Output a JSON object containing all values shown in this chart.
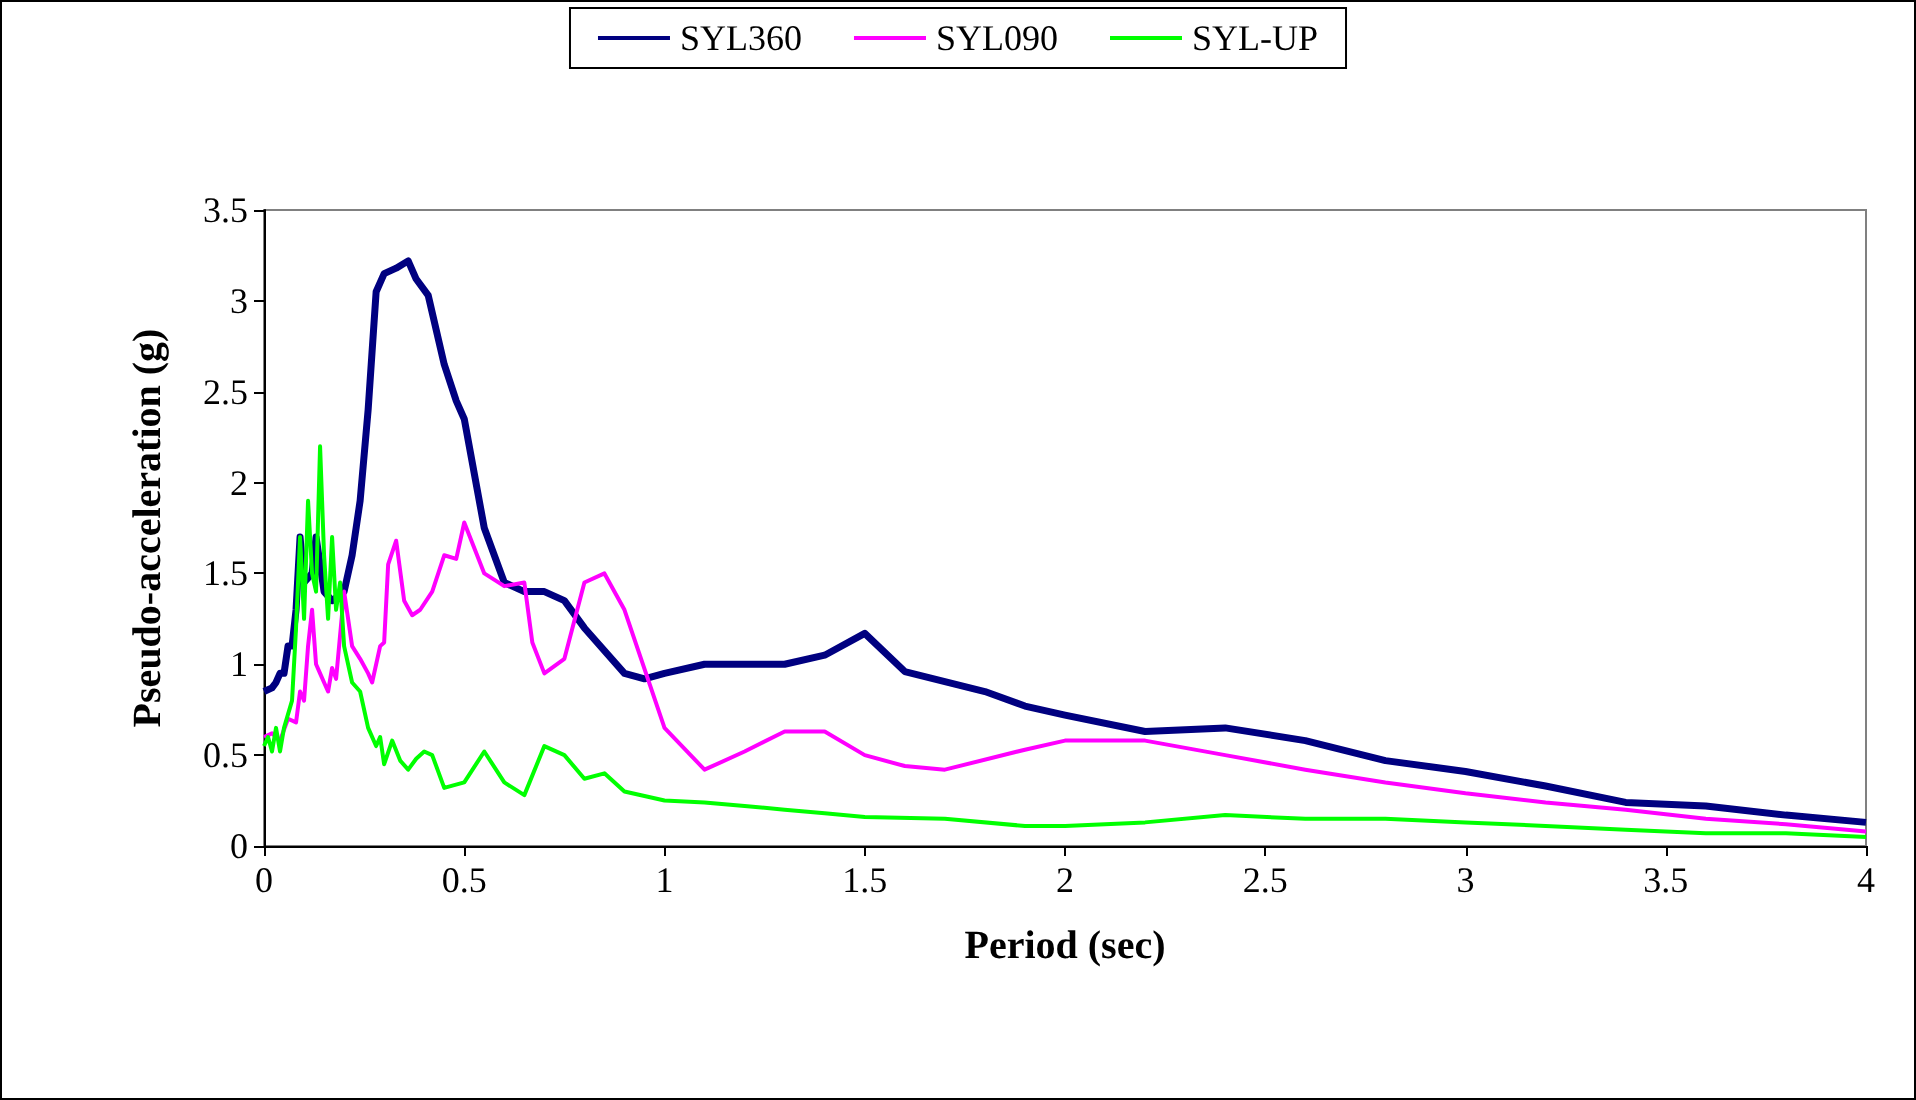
{
  "chart_data": {
    "type": "line",
    "xlabel": "Period (sec)",
    "ylabel": "Pseudo-acceleration (g)",
    "xlim": [
      0,
      4
    ],
    "xticks": [
      0,
      0.5,
      1,
      1.5,
      2,
      2.5,
      3,
      3.5,
      4
    ],
    "ylim": [
      0,
      3.5
    ],
    "yticks": [
      0,
      0.5,
      1,
      1.5,
      2,
      2.5,
      3,
      3.5
    ],
    "grid": false,
    "legend": "top",
    "marker": "none",
    "line_style": "solid",
    "series": [
      {
        "name": "SYL360",
        "color": "#000080",
        "x": [
          0,
          0.02,
          0.03,
          0.04,
          0.05,
          0.06,
          0.07,
          0.08,
          0.09,
          0.1,
          0.12,
          0.13,
          0.15,
          0.17,
          0.2,
          0.22,
          0.24,
          0.26,
          0.28,
          0.3,
          0.33,
          0.36,
          0.38,
          0.41,
          0.45,
          0.48,
          0.5,
          0.55,
          0.6,
          0.65,
          0.7,
          0.75,
          0.8,
          0.9,
          0.95,
          1.0,
          1.1,
          1.2,
          1.3,
          1.4,
          1.5,
          1.6,
          1.8,
          1.9,
          2.0,
          2.2,
          2.4,
          2.6,
          2.8,
          3.0,
          3.2,
          3.4,
          3.6,
          3.8,
          4.0
        ],
        "values": [
          0.85,
          0.87,
          0.9,
          0.95,
          0.95,
          1.1,
          1.1,
          1.3,
          1.7,
          1.45,
          1.5,
          1.7,
          1.4,
          1.35,
          1.4,
          1.6,
          1.9,
          2.4,
          3.05,
          3.15,
          3.18,
          3.22,
          3.12,
          3.03,
          2.65,
          2.45,
          2.35,
          1.75,
          1.45,
          1.4,
          1.4,
          1.35,
          1.2,
          0.95,
          0.92,
          0.95,
          1.0,
          1.0,
          1.0,
          1.05,
          1.17,
          0.96,
          0.85,
          0.77,
          0.72,
          0.63,
          0.65,
          0.58,
          0.47,
          0.41,
          0.33,
          0.24,
          0.22,
          0.17,
          0.13
        ]
      },
      {
        "name": "SYL090",
        "color": "#ff00ff",
        "x": [
          0,
          0.02,
          0.04,
          0.06,
          0.08,
          0.09,
          0.1,
          0.11,
          0.12,
          0.13,
          0.14,
          0.15,
          0.16,
          0.17,
          0.18,
          0.2,
          0.22,
          0.24,
          0.26,
          0.27,
          0.29,
          0.3,
          0.31,
          0.33,
          0.35,
          0.37,
          0.39,
          0.42,
          0.45,
          0.48,
          0.5,
          0.55,
          0.6,
          0.65,
          0.67,
          0.7,
          0.75,
          0.8,
          0.85,
          0.9,
          1.0,
          1.1,
          1.2,
          1.3,
          1.4,
          1.5,
          1.6,
          1.7,
          1.9,
          2.0,
          2.2,
          2.4,
          2.6,
          2.8,
          3.0,
          3.2,
          3.4,
          3.6,
          3.8,
          4.0
        ],
        "values": [
          0.6,
          0.62,
          0.58,
          0.7,
          0.68,
          0.85,
          0.8,
          1.1,
          1.3,
          1.0,
          0.95,
          0.9,
          0.85,
          0.98,
          0.92,
          1.4,
          1.1,
          1.03,
          0.95,
          0.9,
          1.1,
          1.12,
          1.55,
          1.68,
          1.35,
          1.27,
          1.3,
          1.4,
          1.6,
          1.58,
          1.78,
          1.5,
          1.43,
          1.45,
          1.12,
          0.95,
          1.03,
          1.45,
          1.5,
          1.3,
          0.65,
          0.42,
          0.52,
          0.63,
          0.63,
          0.5,
          0.44,
          0.42,
          0.53,
          0.58,
          0.58,
          0.5,
          0.42,
          0.35,
          0.29,
          0.24,
          0.2,
          0.15,
          0.12,
          0.08
        ]
      },
      {
        "name": "SYL-UP",
        "color": "#00ff00",
        "x": [
          0,
          0.01,
          0.02,
          0.03,
          0.04,
          0.05,
          0.07,
          0.08,
          0.09,
          0.1,
          0.11,
          0.12,
          0.13,
          0.14,
          0.15,
          0.16,
          0.17,
          0.18,
          0.19,
          0.2,
          0.22,
          0.24,
          0.26,
          0.28,
          0.29,
          0.3,
          0.32,
          0.34,
          0.36,
          0.38,
          0.4,
          0.42,
          0.45,
          0.5,
          0.55,
          0.6,
          0.65,
          0.7,
          0.75,
          0.8,
          0.85,
          0.9,
          1.0,
          1.1,
          1.2,
          1.3,
          1.4,
          1.5,
          1.7,
          1.9,
          2.0,
          2.2,
          2.4,
          2.6,
          2.8,
          3.0,
          3.2,
          3.4,
          3.6,
          3.8,
          4.0
        ],
        "values": [
          0.55,
          0.6,
          0.52,
          0.65,
          0.52,
          0.65,
          0.8,
          1.2,
          1.7,
          1.25,
          1.9,
          1.5,
          1.4,
          2.2,
          1.6,
          1.25,
          1.7,
          1.3,
          1.45,
          1.1,
          0.9,
          0.85,
          0.65,
          0.55,
          0.6,
          0.45,
          0.58,
          0.47,
          0.42,
          0.48,
          0.52,
          0.5,
          0.32,
          0.35,
          0.52,
          0.35,
          0.28,
          0.55,
          0.5,
          0.37,
          0.4,
          0.3,
          0.25,
          0.24,
          0.22,
          0.2,
          0.18,
          0.16,
          0.15,
          0.11,
          0.11,
          0.13,
          0.17,
          0.15,
          0.15,
          0.13,
          0.11,
          0.09,
          0.07,
          0.07,
          0.05
        ]
      }
    ]
  }
}
